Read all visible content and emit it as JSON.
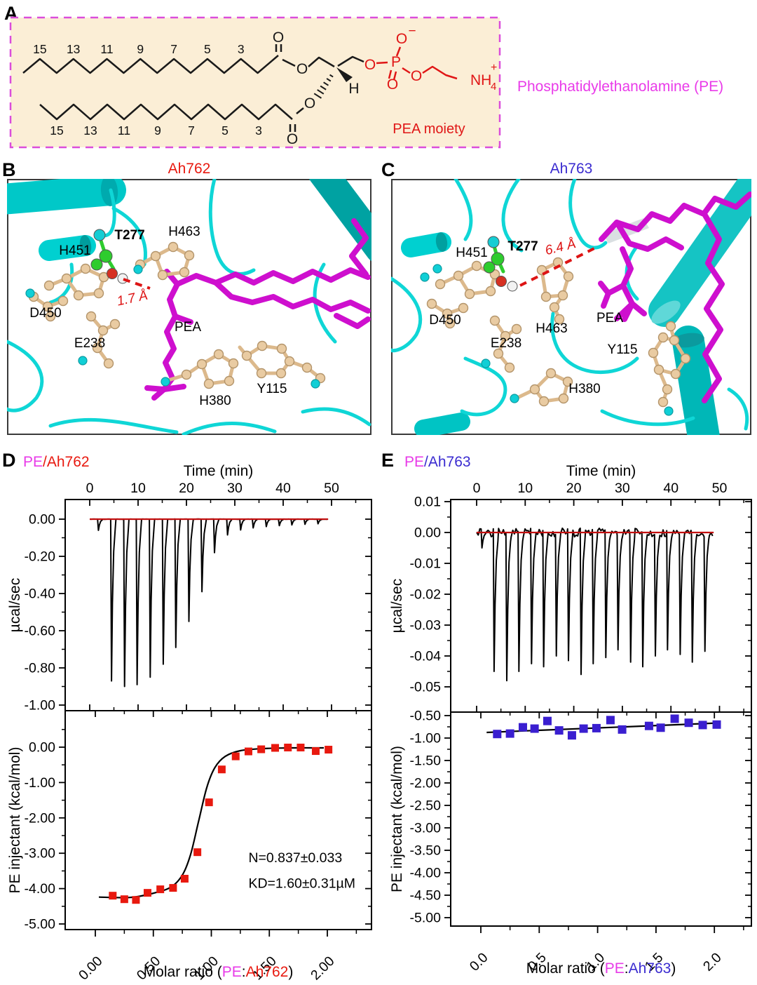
{
  "panel_a": {
    "label": "A",
    "top_chain_numbers": [
      "15",
      "13",
      "11",
      "9",
      "7",
      "5",
      "3"
    ],
    "bottom_chain_numbers": [
      "15",
      "13",
      "11",
      "9",
      "7",
      "5",
      "3"
    ],
    "atom_o": "O",
    "atom_p": "P",
    "atom_h": "H",
    "atom_n": "NH",
    "n_sub": "4",
    "n_sup": "+",
    "o_minus_sign": "−",
    "moiety_label": "PEA moiety",
    "compound_label": "Phosphatidylethanolamine (PE)"
  },
  "panel_b": {
    "label": "B",
    "title": "Ah762",
    "residues": {
      "h451": "H451",
      "t277": "T277",
      "h463": "H463",
      "d450": "D450",
      "e238": "E238",
      "h380": "H380",
      "y115": "Y115",
      "pea": "PEA"
    },
    "distance": "1.7 Å"
  },
  "panel_c": {
    "label": "C",
    "title": "Ah763",
    "residues": {
      "h451": "H451",
      "t277": "T277",
      "h463": "H463",
      "d450": "D450",
      "e238": "E238",
      "h380": "H380",
      "y115": "Y115",
      "pea": "PEA"
    },
    "distance": "6.4 Å"
  },
  "panel_d": {
    "label": "D",
    "title_pe": "PE",
    "title_rest": "/Ah762"
  },
  "panel_e": {
    "label": "E",
    "title_pe": "PE",
    "title_rest": "/Ah763"
  },
  "colors": {
    "pe_magenta": "#e83be8",
    "ah762_red": "#e8190f",
    "ah763_blue": "#3a2bd0",
    "box_fill": "#fbeed6",
    "box_border": "#db4ddb",
    "chem_red": "#e01616",
    "trace_black": "#000000",
    "baseline_red": "#c21010",
    "marker_red": "#e8190f",
    "marker_blue": "#3a1fd0",
    "cartoon_cyan": "#0fd6d6",
    "cartoon_teal": "#00aaaa",
    "ligand_magenta": "#ce0fce",
    "wheat": "#e9cba2",
    "wheat_stick": "#dcb98c",
    "wheat_edge": "#b3946a",
    "green": "#2ecc2e",
    "oxygen_red": "#d63022",
    "white_atom": "#f2f2f2",
    "dash_red": "#dd1414"
  },
  "chart_data": [
    {
      "id": "d_thermo",
      "type": "line",
      "subtype": "itc-thermogram",
      "title": "PE/Ah762",
      "xlabel": "Time (min)",
      "ylabel": "µcal/sec",
      "xlim": [
        -5,
        58
      ],
      "ylim": [
        -1.13,
        0.11
      ],
      "grid": false,
      "xticks": [
        {
          "v": 0,
          "label": "0"
        },
        {
          "v": 10,
          "label": "10"
        },
        {
          "v": 20,
          "label": "20"
        },
        {
          "v": 30,
          "label": "30"
        },
        {
          "v": 40,
          "label": "40"
        },
        {
          "v": 50,
          "label": "50"
        }
      ],
      "yticks": [
        {
          "v": 0,
          "label": "0.00"
        },
        {
          "v": -0.2,
          "label": "-0.20"
        },
        {
          "v": -0.4,
          "label": "-0.40"
        },
        {
          "v": -0.6,
          "label": "-0.60"
        },
        {
          "v": -0.8,
          "label": "-0.80"
        },
        {
          "v": -1.0,
          "label": "-1.00"
        }
      ],
      "baseline": {
        "t0": 0,
        "t1": 49.3,
        "value": 0
      },
      "noise": 0.0006,
      "injections": {
        "times": [
          1.7,
          4.4,
          7.1,
          9.7,
          12.4,
          15.1,
          17.7,
          20.4,
          23.1,
          25.7,
          28.4,
          31.1,
          33.7,
          36.4,
          39.1,
          41.7,
          44.4,
          47.1
        ],
        "depths": [
          -0.06,
          -0.87,
          -0.9,
          -0.89,
          -0.85,
          -0.78,
          -0.69,
          -0.55,
          -0.39,
          -0.18,
          -0.085,
          -0.058,
          -0.047,
          -0.04,
          -0.035,
          -0.031,
          -0.028,
          -0.025
        ]
      }
    },
    {
      "id": "d_iso",
      "type": "scatter",
      "subtype": "itc-isotherm",
      "ylabel": "PE injectant (kcal/mol)",
      "xlabel_parts": [
        {
          "text": "Molar ratio (",
          "color": "#000000"
        },
        {
          "text": "PE",
          "color": "#e83be8"
        },
        {
          "text": ":",
          "color": "#000000"
        },
        {
          "text": "Ah762",
          "color": "#e8190f"
        },
        {
          "text": ")",
          "color": "#000000"
        }
      ],
      "xlim": [
        -0.26,
        2.38
      ],
      "ylim": [
        -5.15,
        1.03
      ],
      "grid": false,
      "xticks": [
        {
          "v": 0,
          "label": "0.00"
        },
        {
          "v": 0.5,
          "label": "0.50"
        },
        {
          "v": 1.0,
          "label": "1.00"
        },
        {
          "v": 1.5,
          "label": "1.50"
        },
        {
          "v": 2.0,
          "label": "2.00"
        }
      ],
      "yticks": [
        {
          "v": 0,
          "label": "0.00"
        },
        {
          "v": -1,
          "label": "-1.00"
        },
        {
          "v": -2,
          "label": "-2.00"
        },
        {
          "v": -3,
          "label": "-3.00"
        },
        {
          "v": -4,
          "label": "-4.00"
        },
        {
          "v": -5,
          "label": "-5.00"
        }
      ],
      "marker_color": "#e8190f",
      "points": {
        "x": [
          0.15,
          0.25,
          0.35,
          0.45,
          0.56,
          0.67,
          0.77,
          0.88,
          0.98,
          1.09,
          1.21,
          1.32,
          1.43,
          1.55,
          1.66,
          1.77,
          1.9,
          2.01
        ],
        "y": [
          -4.2,
          -4.3,
          -4.32,
          -4.12,
          -4.02,
          -3.98,
          -3.72,
          -2.97,
          -1.56,
          -0.63,
          -0.26,
          -0.12,
          -0.06,
          -0.02,
          -0.01,
          -0.01,
          -0.11,
          -0.07
        ]
      },
      "fit": [
        [
          0.03,
          -4.24
        ],
        [
          0.3,
          -4.25
        ],
        [
          0.5,
          -4.13
        ],
        [
          0.65,
          -3.96
        ],
        [
          0.75,
          -3.62
        ],
        [
          0.82,
          -3.05
        ],
        [
          0.89,
          -2.1
        ],
        [
          0.96,
          -1.15
        ],
        [
          1.03,
          -0.58
        ],
        [
          1.12,
          -0.26
        ],
        [
          1.25,
          -0.1
        ],
        [
          1.45,
          -0.04
        ],
        [
          1.7,
          -0.02
        ],
        [
          1.97,
          -0.02
        ]
      ],
      "annotations": [
        {
          "text": "N=0.837±0.033",
          "x": 1.32,
          "y": -3.25
        },
        {
          "text": "KD=1.60±0.31µM",
          "x": 1.32,
          "y": -3.98
        }
      ]
    },
    {
      "id": "e_thermo",
      "type": "line",
      "subtype": "itc-thermogram",
      "title": "PE/Ah763",
      "xlabel": "Time (min)",
      "ylabel": "µcal/sec",
      "xlim": [
        -5.3,
        56.5
      ],
      "ylim": [
        -0.058,
        0.0207
      ],
      "grid": false,
      "xticks": [
        {
          "v": 0,
          "label": "0"
        },
        {
          "v": 10,
          "label": "10"
        },
        {
          "v": 20,
          "label": "20"
        },
        {
          "v": 30,
          "label": "30"
        },
        {
          "v": 40,
          "label": "40"
        },
        {
          "v": 50,
          "label": "50"
        }
      ],
      "yticks": [
        {
          "v": 0.01,
          "label": "0.01"
        },
        {
          "v": 0,
          "label": "0.00"
        },
        {
          "v": -0.01,
          "label": "-0.01"
        },
        {
          "v": -0.02,
          "label": "-0.02"
        },
        {
          "v": -0.03,
          "label": "-0.03"
        },
        {
          "v": -0.04,
          "label": "-0.04"
        },
        {
          "v": -0.05,
          "label": "-0.05"
        }
      ],
      "baseline": {
        "t0": 0,
        "t1": 48.8,
        "value": 0
      },
      "noise": 0.0014,
      "injections": {
        "times": [
          1.0,
          3.5,
          6.1,
          8.6,
          11.2,
          13.7,
          16.3,
          18.8,
          21.4,
          23.9,
          26.5,
          29.0,
          31.6,
          34.1,
          36.7,
          39.2,
          41.8,
          44.3,
          46.9
        ],
        "depths": [
          -0.005,
          -0.045,
          -0.048,
          -0.045,
          -0.0425,
          -0.0435,
          -0.04,
          -0.0415,
          -0.046,
          -0.0425,
          -0.0405,
          -0.038,
          -0.042,
          -0.0435,
          -0.04,
          -0.038,
          -0.0395,
          -0.042,
          -0.0385
        ]
      }
    },
    {
      "id": "e_iso",
      "type": "scatter",
      "subtype": "itc-isotherm",
      "ylabel": "PE injectant (kcal/mol)",
      "xlabel_parts": [
        {
          "text": "Molar ratio (",
          "color": "#000000"
        },
        {
          "text": "PE",
          "color": "#e83be8"
        },
        {
          "text": ":",
          "color": "#000000"
        },
        {
          "text": "Ah763",
          "color": "#3a2bd0"
        },
        {
          "text": ")",
          "color": "#000000"
        }
      ],
      "xlim": [
        -0.26,
        2.32
      ],
      "ylim": [
        -5.19,
        -0.42
      ],
      "grid": false,
      "xticks": [
        {
          "v": 0,
          "label": "0.0"
        },
        {
          "v": 0.5,
          "label": "0.5"
        },
        {
          "v": 1.0,
          "label": "1.0"
        },
        {
          "v": 1.5,
          "label": "1.5"
        },
        {
          "v": 2.0,
          "label": "2.0"
        }
      ],
      "yticks": [
        {
          "v": -0.5,
          "label": "-0.50"
        },
        {
          "v": -1.0,
          "label": "-1.00"
        },
        {
          "v": -1.5,
          "label": "-1.50"
        },
        {
          "v": -2.0,
          "label": "-2.00"
        },
        {
          "v": -2.5,
          "label": "-2.50"
        },
        {
          "v": -3.0,
          "label": "-3.00"
        },
        {
          "v": -3.5,
          "label": "-3.50"
        },
        {
          "v": -4.0,
          "label": "-4.00"
        },
        {
          "v": -4.5,
          "label": "-4.50"
        },
        {
          "v": -5.0,
          "label": "-5.00"
        }
      ],
      "marker_color": "#3a1fd0",
      "points": {
        "x": [
          0.14,
          0.25,
          0.36,
          0.46,
          0.57,
          0.67,
          0.78,
          0.88,
          0.99,
          1.11,
          1.21,
          1.44,
          1.54,
          1.66,
          1.78,
          1.9,
          2.02
        ],
        "y": [
          -0.91,
          -0.9,
          -0.76,
          -0.79,
          -0.62,
          -0.83,
          -0.94,
          -0.79,
          -0.78,
          -0.6,
          -0.81,
          -0.73,
          -0.77,
          -0.57,
          -0.66,
          -0.71,
          -0.7
        ]
      },
      "fit": [
        [
          0.05,
          -0.875
        ],
        [
          2.03,
          -0.665
        ]
      ],
      "annotations": []
    }
  ]
}
